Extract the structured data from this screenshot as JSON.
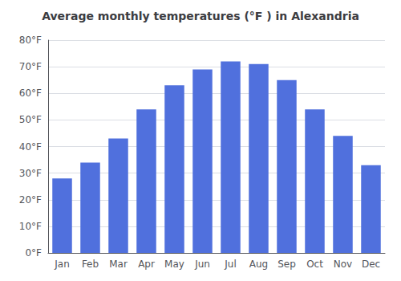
{
  "chart_data": {
    "type": "bar",
    "title": "Average monthly temperatures (°F ) in Alexandria",
    "categories": [
      "Jan",
      "Feb",
      "Mar",
      "Apr",
      "May",
      "Jun",
      "Jul",
      "Aug",
      "Sep",
      "Oct",
      "Nov",
      "Dec"
    ],
    "values": [
      28,
      34,
      43,
      54,
      63,
      69,
      72,
      71,
      65,
      54,
      44,
      33
    ],
    "ylim": [
      0,
      80
    ],
    "yticks": [
      {
        "value": 0,
        "label": "0°F"
      },
      {
        "value": 10,
        "label": "10°F"
      },
      {
        "value": 20,
        "label": "20°F"
      },
      {
        "value": 30,
        "label": "30°F"
      },
      {
        "value": 40,
        "label": "40°F"
      },
      {
        "value": 50,
        "label": "50°F"
      },
      {
        "value": 60,
        "label": "60°F"
      },
      {
        "value": 70,
        "label": "70°F"
      },
      {
        "value": 80,
        "label": "80°F"
      }
    ],
    "grid": true
  }
}
